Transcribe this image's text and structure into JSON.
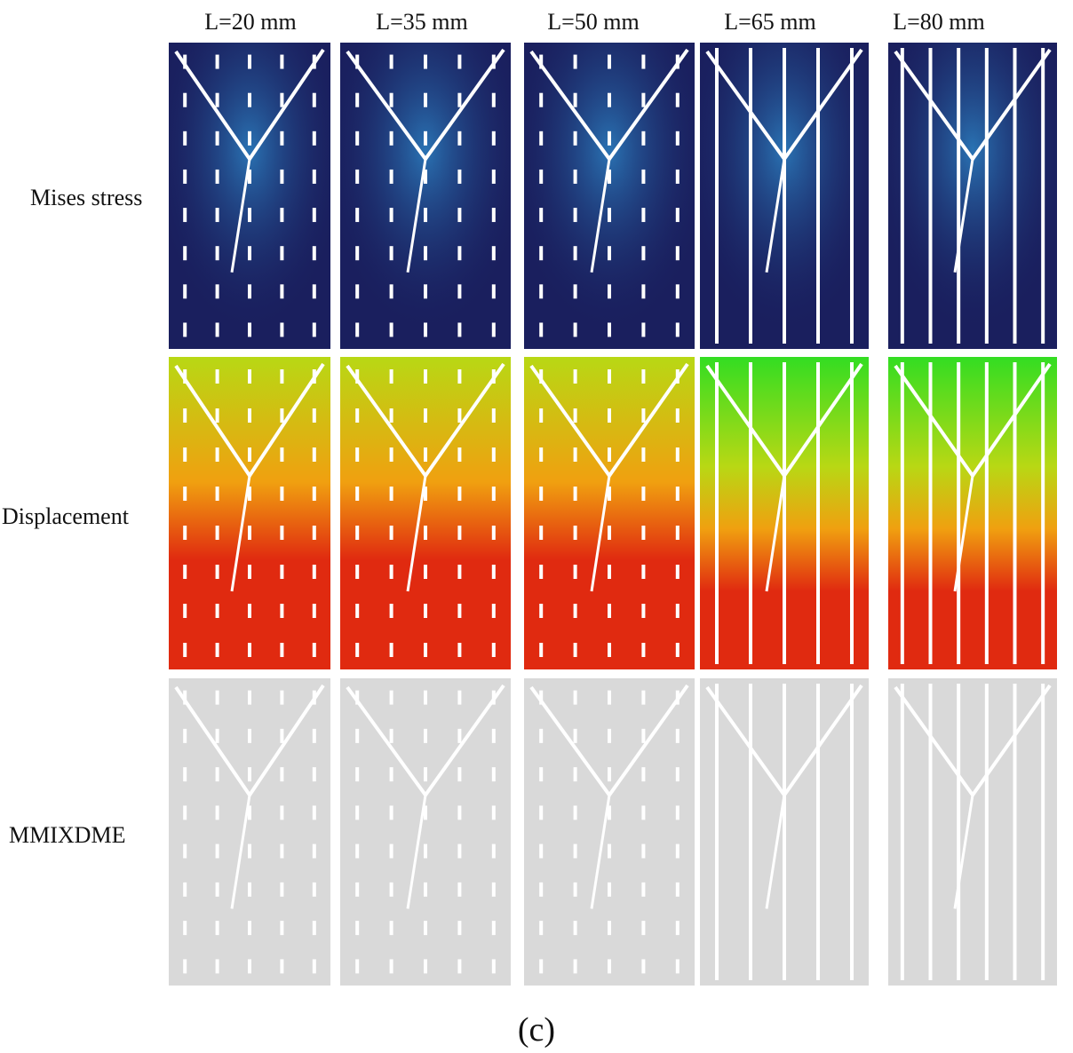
{
  "columns": [
    "L=20 mm",
    "L=35 mm",
    "L=50 mm",
    "L=65 mm",
    "L=80 mm"
  ],
  "rows": [
    "Mises stress",
    "Displacement",
    "MMIXDME"
  ],
  "caption": "(c)",
  "colors": {
    "mises_background": "#1a1f5e",
    "mises_highlight": "#2f8fd0",
    "displacement_bottom": "#e02a10",
    "displacement_middle": "#f0a010",
    "displacement_top": "#b8d814",
    "displacement_green": "#33dd22",
    "mmixdme_background": "#d9d9d9",
    "crack": "#ffffff"
  }
}
